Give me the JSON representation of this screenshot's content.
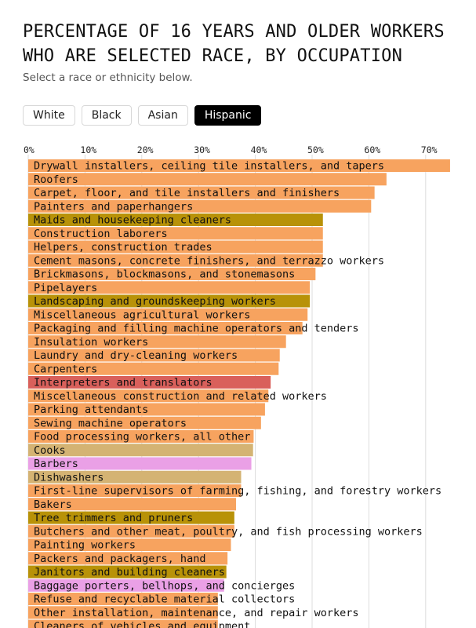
{
  "header": {
    "title": "PERCENTAGE OF 16 YEARS AND OLDER WORKERS WHO ARE SELECTED RACE, BY OCCUPATION",
    "subtitle": "Select a race or ethnicity below."
  },
  "tabs": [
    {
      "label": "White",
      "active": false
    },
    {
      "label": "Black",
      "active": false
    },
    {
      "label": "Asian",
      "active": false
    },
    {
      "label": "Hispanic",
      "active": true
    }
  ],
  "colors": {
    "default": "#f7a35f",
    "olive": "#b89208",
    "tan": "#d4b373",
    "red": "#d9605b",
    "pink": "#eaa0e6",
    "grid": "#dddddd"
  },
  "chart_data": {
    "type": "bar",
    "orientation": "horizontal",
    "xlim": [
      0,
      75
    ],
    "xticks": [
      "0%",
      "10%",
      "20%",
      "30%",
      "40%",
      "50%",
      "60%",
      "70%"
    ],
    "grid": true,
    "bars": [
      {
        "label": "Drywall installers, ceiling tile installers, and tapers",
        "value": 74.3,
        "color": "default"
      },
      {
        "label": "Roofers",
        "value": 63.1,
        "color": "default"
      },
      {
        "label": "Carpet, floor, and tile installers and finishers",
        "value": 61.0,
        "color": "default"
      },
      {
        "label": "Painters and paperhangers",
        "value": 60.4,
        "color": "default"
      },
      {
        "label": "Maids and housekeeping cleaners",
        "value": 51.9,
        "color": "olive"
      },
      {
        "label": "Construction laborers",
        "value": 51.9,
        "color": "default"
      },
      {
        "label": "Helpers, construction trades",
        "value": 51.9,
        "color": "default"
      },
      {
        "label": "Cement masons, concrete finishers, and terrazzo workers",
        "value": 51.9,
        "color": "default"
      },
      {
        "label": "Brickmasons, blockmasons, and stonemasons",
        "value": 50.6,
        "color": "default"
      },
      {
        "label": "Pipelayers",
        "value": 49.6,
        "color": "default"
      },
      {
        "label": "Landscaping and groundskeeping workers",
        "value": 49.6,
        "color": "olive"
      },
      {
        "label": "Miscellaneous agricultural workers",
        "value": 49.2,
        "color": "default"
      },
      {
        "label": "Packaging and filling machine operators and tenders",
        "value": 48.3,
        "color": "default"
      },
      {
        "label": "Insulation workers",
        "value": 45.4,
        "color": "default"
      },
      {
        "label": "Laundry and dry-cleaning workers",
        "value": 44.3,
        "color": "default"
      },
      {
        "label": "Carpenters",
        "value": 44.1,
        "color": "default"
      },
      {
        "label": "Interpreters and translators",
        "value": 42.7,
        "color": "red"
      },
      {
        "label": "Miscellaneous construction and related workers",
        "value": 42.3,
        "color": "default"
      },
      {
        "label": "Parking attendants",
        "value": 41.7,
        "color": "default"
      },
      {
        "label": "Sewing machine operators",
        "value": 41.0,
        "color": "default"
      },
      {
        "label": "Food processing workers, all other",
        "value": 39.7,
        "color": "default"
      },
      {
        "label": "Cooks",
        "value": 39.6,
        "color": "tan"
      },
      {
        "label": "Barbers",
        "value": 39.3,
        "color": "pink"
      },
      {
        "label": "Dishwashers",
        "value": 37.5,
        "color": "tan"
      },
      {
        "label": "First-line supervisors of farming, fishing, and forestry workers",
        "value": 37.5,
        "color": "default"
      },
      {
        "label": "Bakers",
        "value": 36.6,
        "color": "default"
      },
      {
        "label": "Tree trimmers and pruners",
        "value": 36.3,
        "color": "olive"
      },
      {
        "label": "Butchers and other meat, poultry, and fish processing workers",
        "value": 36.3,
        "color": "default"
      },
      {
        "label": "Painting workers",
        "value": 35.7,
        "color": "default"
      },
      {
        "label": "Packers and packagers, hand",
        "value": 35.1,
        "color": "default"
      },
      {
        "label": "Janitors and building cleaners",
        "value": 34.9,
        "color": "olive"
      },
      {
        "label": "Baggage porters, bellhops, and concierges",
        "value": 34.5,
        "color": "pink"
      },
      {
        "label": "Refuse and recyclable material collectors",
        "value": 33.4,
        "color": "default"
      },
      {
        "label": "Other installation, maintenance, and repair workers",
        "value": 33.4,
        "color": "default"
      },
      {
        "label": "Cleaners of vehicles and equipment",
        "value": 33.4,
        "color": "default"
      }
    ]
  }
}
